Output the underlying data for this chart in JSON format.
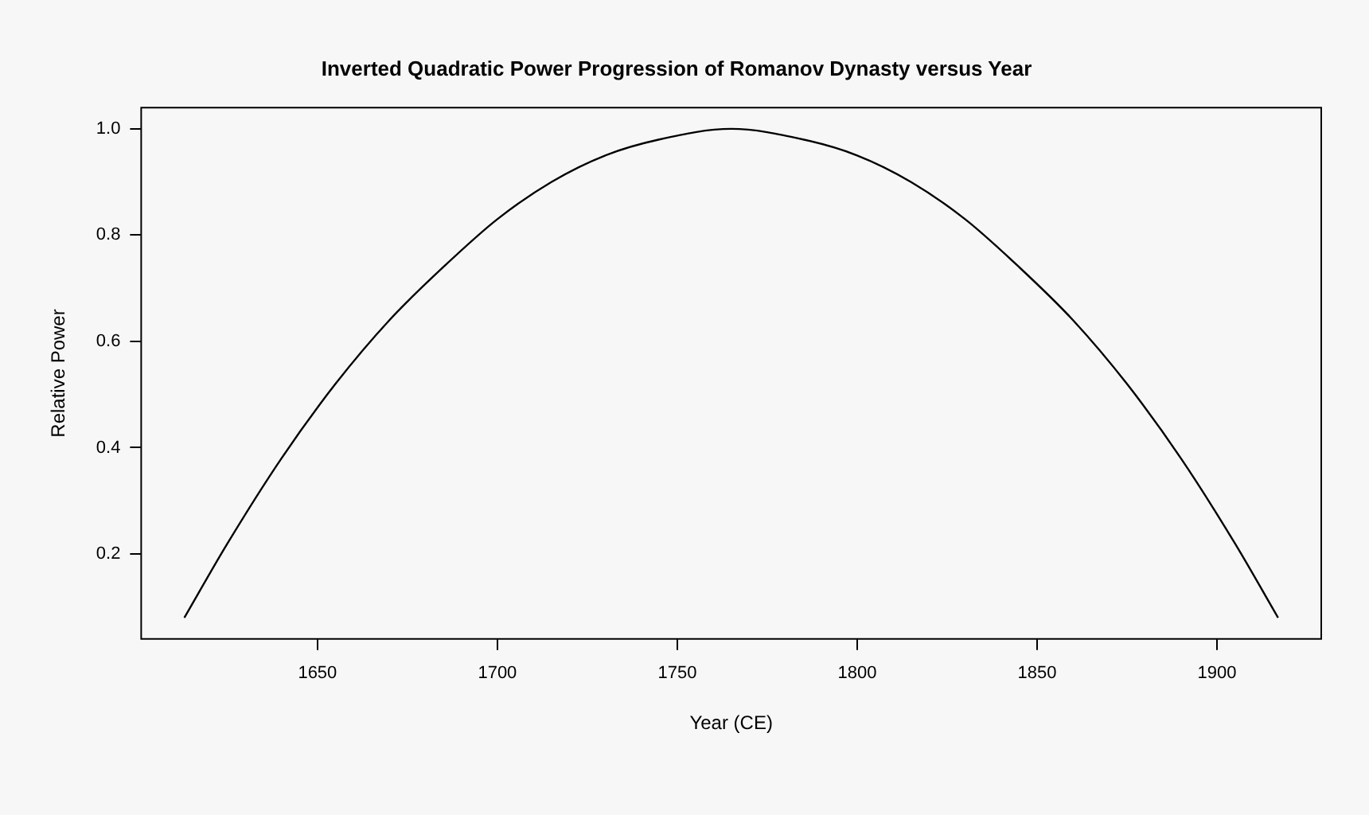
{
  "chart_data": {
    "type": "line",
    "title": "Inverted Quadratic Power Progression of Romanov Dynasty versus Year",
    "xlabel": "Year (CE)",
    "ylabel": "Relative Power",
    "x": [
      1613,
      1625,
      1640,
      1655,
      1670,
      1685,
      1700,
      1715,
      1730,
      1745,
      1765,
      1785,
      1800,
      1815,
      1830,
      1845,
      1860,
      1875,
      1890,
      1905,
      1917
    ],
    "series": [
      {
        "color": "#000000",
        "values": [
          0.08,
          0.22,
          0.38,
          0.52,
          0.64,
          0.74,
          0.83,
          0.9,
          0.95,
          0.98,
          1.0,
          0.98,
          0.95,
          0.9,
          0.83,
          0.74,
          0.64,
          0.52,
          0.38,
          0.22,
          0.08
        ]
      }
    ],
    "xlim": [
      1601,
      1929
    ],
    "xticks": [
      1650,
      1700,
      1750,
      1800,
      1850,
      1900
    ],
    "ylim": [
      0.04,
      1.04
    ],
    "yticks": [
      {
        "value": 0.2,
        "label": "0.2"
      },
      {
        "value": 0.4,
        "label": "0.4"
      },
      {
        "value": 0.6,
        "label": "0.6"
      },
      {
        "value": 0.8,
        "label": "0.8"
      },
      {
        "value": 1.0,
        "label": "1.0"
      }
    ],
    "grid": false,
    "legend": false,
    "marker": "none",
    "line_style": "solid"
  }
}
